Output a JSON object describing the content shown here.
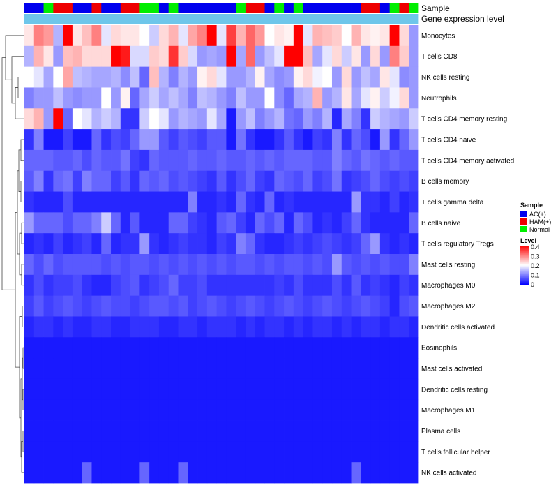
{
  "chart_data": {
    "type": "heatmap",
    "title": "",
    "annotation_rows": [
      "Sample",
      "Gene expression level"
    ],
    "rows": [
      "Monocytes",
      "T cells CD8",
      "NK cells resting",
      "Neutrophils",
      "T cells CD4 memory resting",
      "T cells CD4 naive",
      "T cells CD4 memory activated",
      "B cells memory",
      "T cells gamma delta",
      "B cells naive",
      "T cells regulatory  Tregs",
      "Mast cells resting",
      "Macrophages M0",
      "Macrophages M2",
      "Dendritic cells activated",
      "Eosinophils",
      "Mast cells activated",
      "Dendritic cells resting",
      "Macrophages M1",
      "Plasma cells",
      "T cells follicular helper",
      "NK cells activated"
    ],
    "sample_groups": [
      "AC",
      "AC",
      "N",
      "H",
      "H",
      "AC",
      "AC",
      "H",
      "AC",
      "AC",
      "H",
      "H",
      "N",
      "N",
      "AC",
      "N",
      "AC",
      "AC",
      "AC",
      "AC",
      "AC",
      "AC",
      "N",
      "H",
      "H",
      "AC",
      "N",
      "AC",
      "N",
      "AC",
      "AC",
      "AC",
      "AC",
      "AC",
      "AC",
      "H",
      "H",
      "AC",
      "N",
      "H",
      "N"
    ],
    "values": [
      [
        0.22,
        0.3,
        0.28,
        0.14,
        0.4,
        0.22,
        0.25,
        0.3,
        0.18,
        0.23,
        0.22,
        0.22,
        0.2,
        0.16,
        0.23,
        0.26,
        0.18,
        0.27,
        0.3,
        0.4,
        0.18,
        0.35,
        0.26,
        0.32,
        0.28,
        0.2,
        0.22,
        0.21,
        0.4,
        0.18,
        0.26,
        0.25,
        0.24,
        0.2,
        0.26,
        0.22,
        0.21,
        0.22,
        0.4,
        0.23,
        0.12
      ],
      [
        0.14,
        0.26,
        0.22,
        0.12,
        0.25,
        0.26,
        0.23,
        0.23,
        0.23,
        0.4,
        0.38,
        0.17,
        0.17,
        0.24,
        0.23,
        0.36,
        0.24,
        0.17,
        0.12,
        0.13,
        0.12,
        0.4,
        0.13,
        0.32,
        0.12,
        0.15,
        0.18,
        0.4,
        0.4,
        0.25,
        0.13,
        0.18,
        0.23,
        0.16,
        0.22,
        0.12,
        0.23,
        0.12,
        0.3,
        0.24,
        0.12
      ],
      [
        0.2,
        0.18,
        0.13,
        0.2,
        0.27,
        0.15,
        0.14,
        0.13,
        0.13,
        0.14,
        0.11,
        0.15,
        0.08,
        0.25,
        0.14,
        0.1,
        0.14,
        0.12,
        0.21,
        0.23,
        0.18,
        0.12,
        0.12,
        0.14,
        0.21,
        0.13,
        0.11,
        0.12,
        0.21,
        0.23,
        0.19,
        0.2,
        0.12,
        0.23,
        0.12,
        0.15,
        0.13,
        0.22,
        0.18,
        0.11,
        0.12
      ],
      [
        0.1,
        0.12,
        0.12,
        0.15,
        0.12,
        0.11,
        0.12,
        0.12,
        0.2,
        0.12,
        0.21,
        0.08,
        0.13,
        0.16,
        0.13,
        0.15,
        0.13,
        0.1,
        0.15,
        0.14,
        0.12,
        0.1,
        0.15,
        0.12,
        0.12,
        0.2,
        0.11,
        0.08,
        0.13,
        0.14,
        0.26,
        0.12,
        0.14,
        0.22,
        0.13,
        0.18,
        0.21,
        0.16,
        0.19,
        0.23,
        0.12
      ],
      [
        0.23,
        0.26,
        0.12,
        0.4,
        0.08,
        0.2,
        0.18,
        0.14,
        0.16,
        0.14,
        0.04,
        0.04,
        0.16,
        0.2,
        0.18,
        0.12,
        0.14,
        0.13,
        0.12,
        0.18,
        0.13,
        0.02,
        0.12,
        0.15,
        0.1,
        0.12,
        0.14,
        0.09,
        0.08,
        0.12,
        0.1,
        0.14,
        0.03,
        0.13,
        0.1,
        0.04,
        0.16,
        0.14,
        0.13,
        0.12,
        0.16
      ],
      [
        0.04,
        0.1,
        0.02,
        0.02,
        0.05,
        0.02,
        0.02,
        0.08,
        0.04,
        0.06,
        0.05,
        0.08,
        0.12,
        0.12,
        0.07,
        0.05,
        0.07,
        0.06,
        0.05,
        0.07,
        0.07,
        0.02,
        0.09,
        0.04,
        0.02,
        0.02,
        0.04,
        0.07,
        0.04,
        0.02,
        0.05,
        0.04,
        0.1,
        0.04,
        0.08,
        0.06,
        0.02,
        0.12,
        0.04,
        0.08,
        0.12
      ],
      [
        0.08,
        0.08,
        0.08,
        0.07,
        0.07,
        0.08,
        0.06,
        0.08,
        0.07,
        0.07,
        0.09,
        0.05,
        0.04,
        0.08,
        0.07,
        0.07,
        0.07,
        0.08,
        0.07,
        0.07,
        0.08,
        0.07,
        0.07,
        0.08,
        0.07,
        0.08,
        0.07,
        0.08,
        0.08,
        0.08,
        0.07,
        0.07,
        0.1,
        0.08,
        0.07,
        0.09,
        0.08,
        0.07,
        0.08,
        0.07,
        0.07
      ],
      [
        0.07,
        0.1,
        0.04,
        0.08,
        0.09,
        0.05,
        0.1,
        0.08,
        0.08,
        0.05,
        0.07,
        0.04,
        0.08,
        0.07,
        0.08,
        0.06,
        0.07,
        0.06,
        0.05,
        0.04,
        0.07,
        0.04,
        0.06,
        0.08,
        0.05,
        0.04,
        0.08,
        0.07,
        0.06,
        0.08,
        0.05,
        0.06,
        0.09,
        0.04,
        0.05,
        0.06,
        0.08,
        0.06,
        0.05,
        0.06,
        0.05
      ],
      [
        0.04,
        0.03,
        0.03,
        0.03,
        0.06,
        0.03,
        0.03,
        0.03,
        0.03,
        0.03,
        0.03,
        0.03,
        0.03,
        0.03,
        0.03,
        0.03,
        0.03,
        0.1,
        0.03,
        0.03,
        0.04,
        0.03,
        0.08,
        0.04,
        0.03,
        0.08,
        0.03,
        0.04,
        0.03,
        0.03,
        0.03,
        0.03,
        0.03,
        0.03,
        0.12,
        0.04,
        0.04,
        0.03,
        0.05,
        0.03,
        0.04
      ],
      [
        0.12,
        0.08,
        0.08,
        0.08,
        0.06,
        0.08,
        0.08,
        0.1,
        0.16,
        0.08,
        0.03,
        0.07,
        0.03,
        0.03,
        0.03,
        0.08,
        0.08,
        0.05,
        0.04,
        0.03,
        0.07,
        0.08,
        0.05,
        0.03,
        0.08,
        0.06,
        0.08,
        0.03,
        0.08,
        0.06,
        0.03,
        0.04,
        0.03,
        0.05,
        0.08,
        0.04,
        0.03,
        0.03,
        0.03,
        0.03,
        0.08
      ],
      [
        0.03,
        0.04,
        0.03,
        0.05,
        0.03,
        0.04,
        0.05,
        0.03,
        0.08,
        0.03,
        0.04,
        0.04,
        0.12,
        0.04,
        0.03,
        0.04,
        0.05,
        0.04,
        0.04,
        0.03,
        0.05,
        0.04,
        0.1,
        0.08,
        0.04,
        0.03,
        0.03,
        0.04,
        0.05,
        0.04,
        0.05,
        0.06,
        0.05,
        0.04,
        0.05,
        0.08,
        0.12,
        0.04,
        0.03,
        0.04,
        0.03
      ],
      [
        0.08,
        0.06,
        0.08,
        0.06,
        0.07,
        0.07,
        0.07,
        0.07,
        0.06,
        0.07,
        0.06,
        0.07,
        0.07,
        0.06,
        0.07,
        0.06,
        0.07,
        0.06,
        0.07,
        0.06,
        0.07,
        0.06,
        0.07,
        0.07,
        0.06,
        0.07,
        0.06,
        0.07,
        0.07,
        0.06,
        0.07,
        0.06,
        0.12,
        0.07,
        0.06,
        0.07,
        0.06,
        0.07,
        0.06,
        0.06,
        0.1
      ],
      [
        0.04,
        0.06,
        0.04,
        0.05,
        0.05,
        0.06,
        0.04,
        0.03,
        0.03,
        0.05,
        0.06,
        0.07,
        0.04,
        0.05,
        0.06,
        0.08,
        0.05,
        0.05,
        0.06,
        0.04,
        0.04,
        0.04,
        0.04,
        0.04,
        0.04,
        0.04,
        0.05,
        0.04,
        0.06,
        0.04,
        0.04,
        0.04,
        0.06,
        0.04,
        0.07,
        0.04,
        0.05,
        0.04,
        0.03,
        0.05,
        0.04
      ],
      [
        0.05,
        0.07,
        0.05,
        0.06,
        0.07,
        0.06,
        0.05,
        0.06,
        0.07,
        0.06,
        0.06,
        0.05,
        0.06,
        0.07,
        0.07,
        0.06,
        0.07,
        0.05,
        0.06,
        0.07,
        0.06,
        0.05,
        0.06,
        0.07,
        0.06,
        0.05,
        0.06,
        0.07,
        0.06,
        0.05,
        0.06,
        0.07,
        0.06,
        0.05,
        0.06,
        0.07,
        0.06,
        0.05,
        0.03,
        0.06,
        0.07
      ],
      [
        0.03,
        0.04,
        0.04,
        0.03,
        0.04,
        0.03,
        0.03,
        0.04,
        0.04,
        0.03,
        0.03,
        0.04,
        0.04,
        0.04,
        0.03,
        0.03,
        0.04,
        0.04,
        0.03,
        0.04,
        0.04,
        0.04,
        0.03,
        0.04,
        0.03,
        0.04,
        0.04,
        0.03,
        0.04,
        0.03,
        0.04,
        0.04,
        0.03,
        0.04,
        0.03,
        0.04,
        0.04,
        0.03,
        0.04,
        0.04,
        0.03
      ],
      [
        0.02,
        0.02,
        0.02,
        0.02,
        0.02,
        0.02,
        0.02,
        0.02,
        0.02,
        0.02,
        0.02,
        0.02,
        0.02,
        0.02,
        0.02,
        0.02,
        0.02,
        0.02,
        0.02,
        0.02,
        0.02,
        0.02,
        0.02,
        0.02,
        0.02,
        0.02,
        0.02,
        0.02,
        0.02,
        0.02,
        0.02,
        0.02,
        0.02,
        0.02,
        0.02,
        0.02,
        0.02,
        0.02,
        0.02,
        0.02,
        0.02
      ],
      [
        0.02,
        0.02,
        0.02,
        0.02,
        0.02,
        0.02,
        0.02,
        0.02,
        0.02,
        0.02,
        0.02,
        0.02,
        0.02,
        0.02,
        0.02,
        0.02,
        0.02,
        0.02,
        0.02,
        0.02,
        0.02,
        0.02,
        0.02,
        0.02,
        0.02,
        0.02,
        0.02,
        0.02,
        0.02,
        0.02,
        0.02,
        0.02,
        0.02,
        0.02,
        0.02,
        0.02,
        0.02,
        0.02,
        0.02,
        0.02,
        0.02
      ],
      [
        0.02,
        0.02,
        0.02,
        0.02,
        0.02,
        0.02,
        0.02,
        0.02,
        0.02,
        0.02,
        0.02,
        0.02,
        0.02,
        0.02,
        0.02,
        0.02,
        0.02,
        0.02,
        0.02,
        0.02,
        0.02,
        0.02,
        0.02,
        0.02,
        0.02,
        0.02,
        0.02,
        0.02,
        0.02,
        0.02,
        0.02,
        0.02,
        0.02,
        0.02,
        0.02,
        0.02,
        0.02,
        0.02,
        0.02,
        0.02,
        0.02
      ],
      [
        0.02,
        0.02,
        0.02,
        0.02,
        0.02,
        0.02,
        0.02,
        0.02,
        0.02,
        0.02,
        0.02,
        0.02,
        0.02,
        0.02,
        0.02,
        0.02,
        0.02,
        0.02,
        0.02,
        0.02,
        0.02,
        0.02,
        0.02,
        0.02,
        0.02,
        0.02,
        0.02,
        0.02,
        0.02,
        0.02,
        0.02,
        0.02,
        0.02,
        0.02,
        0.02,
        0.02,
        0.02,
        0.02,
        0.02,
        0.02,
        0.02
      ],
      [
        0.02,
        0.02,
        0.02,
        0.02,
        0.02,
        0.02,
        0.02,
        0.02,
        0.02,
        0.02,
        0.02,
        0.02,
        0.02,
        0.02,
        0.02,
        0.02,
        0.02,
        0.02,
        0.02,
        0.02,
        0.02,
        0.02,
        0.02,
        0.02,
        0.02,
        0.02,
        0.02,
        0.02,
        0.02,
        0.02,
        0.02,
        0.02,
        0.02,
        0.02,
        0.02,
        0.02,
        0.02,
        0.02,
        0.02,
        0.02,
        0.02
      ],
      [
        0.02,
        0.02,
        0.02,
        0.02,
        0.02,
        0.02,
        0.02,
        0.02,
        0.02,
        0.02,
        0.02,
        0.02,
        0.02,
        0.02,
        0.02,
        0.02,
        0.02,
        0.02,
        0.02,
        0.02,
        0.02,
        0.02,
        0.02,
        0.02,
        0.02,
        0.02,
        0.02,
        0.02,
        0.02,
        0.02,
        0.02,
        0.02,
        0.02,
        0.02,
        0.02,
        0.02,
        0.02,
        0.02,
        0.02,
        0.02,
        0.02
      ],
      [
        0.02,
        0.02,
        0.02,
        0.02,
        0.02,
        0.02,
        0.08,
        0.02,
        0.02,
        0.02,
        0.02,
        0.02,
        0.08,
        0.02,
        0.02,
        0.02,
        0.08,
        0.02,
        0.02,
        0.02,
        0.02,
        0.02,
        0.02,
        0.02,
        0.02,
        0.02,
        0.02,
        0.02,
        0.02,
        0.02,
        0.02,
        0.02,
        0.02,
        0.02,
        0.08,
        0.02,
        0.02,
        0.02,
        0.02,
        0.02,
        0.02
      ]
    ],
    "color_scale": {
      "min": 0,
      "mid": 0.2,
      "max": 0.4,
      "low_color": "#0000ff",
      "mid_color": "#ffffff",
      "high_color": "#ff0000"
    },
    "annotation_bar_color": "#6ec6ea",
    "legend": {
      "sample_title": "Sample",
      "sample_entries": [
        {
          "key": "AC",
          "label": "AC(+)",
          "color": "#0000ee"
        },
        {
          "key": "H",
          "label": "HAM(+)",
          "color": "#ee0000"
        },
        {
          "key": "N",
          "label": "Normal",
          "color": "#00ee00"
        }
      ],
      "level_title": "Level",
      "level_ticks": [
        "0.4",
        "0.3",
        "0.2",
        "0.1",
        "0"
      ]
    }
  }
}
